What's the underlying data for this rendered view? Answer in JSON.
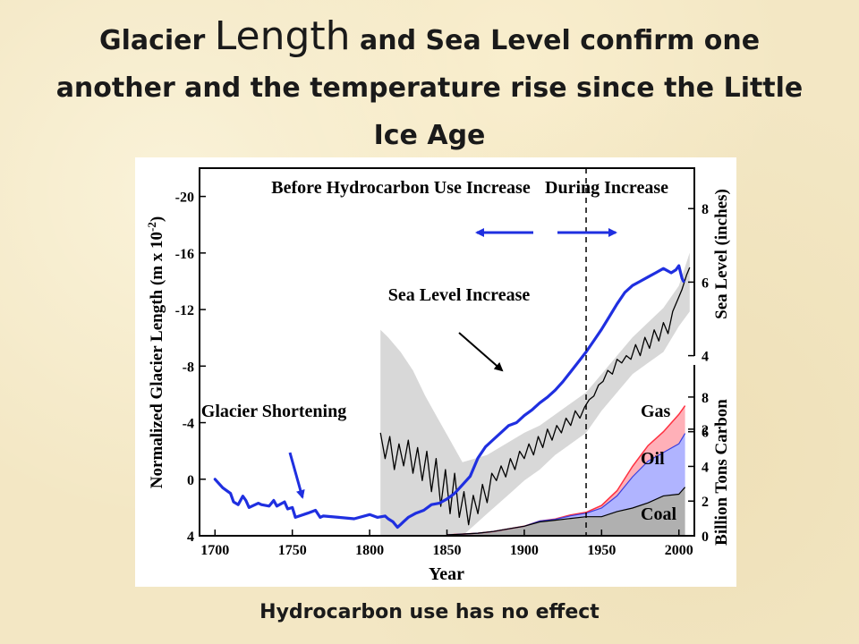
{
  "slide": {
    "title_part1": "Glacier",
    "title_part2": "Length",
    "title_part3": "and Sea Level confirm one another and the temperature rise since the Little Ice Age",
    "caption": "Hydrocarbon use has no effect"
  },
  "chart_data": {
    "type": "line",
    "xlabel": "Year",
    "xlim": [
      1690,
      2010
    ],
    "xticks": [
      1700,
      1750,
      1800,
      1850,
      1900,
      1950,
      2000
    ],
    "y_left": {
      "label": "Normalized Glacier Length (m x 10",
      "label_exp": "-2",
      "label_close": ")",
      "reversed": true,
      "range": [
        4,
        -22
      ],
      "ticks": [
        4,
        0,
        -4,
        -8,
        -12,
        -16,
        -20
      ],
      "tick_labels": [
        "4",
        "0",
        "-4",
        "-8",
        "-12",
        "-16",
        "-20"
      ]
    },
    "y_right_sea": {
      "label": "Sea Level (inches)",
      "range": [
        -0.9,
        9.1
      ],
      "ticks": [
        2,
        4,
        6,
        8
      ]
    },
    "y_right_carbon": {
      "label": "Billion Tons Carbon",
      "range": [
        0,
        9.8
      ],
      "ticks": [
        0,
        2,
        4,
        6,
        8
      ]
    },
    "colors": {
      "glacier": "#1f2fe0",
      "sea": "#000000",
      "coal": "#b0b0b0",
      "oil": "#b0b4ff",
      "gas": "#ffb0b8",
      "gas_line": "#ff3040",
      "band": "#d8d8d8"
    },
    "series": [
      {
        "name": "Glacier Length",
        "axis": "left",
        "x": [
          1700,
          1705,
          1710,
          1712,
          1715,
          1718,
          1720,
          1722,
          1728,
          1730,
          1735,
          1738,
          1740,
          1745,
          1747,
          1750,
          1752,
          1760,
          1765,
          1768,
          1770,
          1780,
          1790,
          1800,
          1805,
          1810,
          1812,
          1815,
          1818,
          1820,
          1822,
          1825,
          1830,
          1835,
          1840,
          1845,
          1850,
          1855,
          1860,
          1865,
          1870,
          1875,
          1880,
          1885,
          1890,
          1895,
          1900,
          1905,
          1910,
          1915,
          1920,
          1925,
          1930,
          1935,
          1940,
          1945,
          1950,
          1955,
          1960,
          1965,
          1970,
          1975,
          1980,
          1985,
          1990,
          1995,
          1998,
          2000,
          2002,
          2003
        ],
        "y": [
          0,
          0.6,
          1.0,
          1.6,
          1.8,
          1.2,
          1.5,
          2.0,
          1.7,
          1.8,
          1.9,
          1.5,
          1.9,
          1.6,
          2.1,
          2.0,
          2.7,
          2.4,
          2.2,
          2.7,
          2.6,
          2.7,
          2.8,
          2.5,
          2.7,
          2.6,
          2.8,
          3.0,
          3.4,
          3.2,
          3.0,
          2.7,
          2.4,
          2.2,
          1.8,
          1.7,
          1.4,
          1.0,
          0.4,
          -0.2,
          -1.5,
          -2.3,
          -2.8,
          -3.3,
          -3.8,
          -4.0,
          -4.5,
          -4.9,
          -5.4,
          -5.8,
          -6.3,
          -6.9,
          -7.6,
          -8.3,
          -9.0,
          -9.8,
          -10.6,
          -11.5,
          -12.4,
          -13.2,
          -13.7,
          -14.0,
          -14.3,
          -14.6,
          -14.9,
          -14.6,
          -14.8,
          -15.1,
          -14.2,
          -14.0
        ]
      },
      {
        "name": "Sea Level",
        "axis": "right_sea",
        "x": [
          1807,
          1810,
          1813,
          1816,
          1819,
          1822,
          1825,
          1828,
          1831,
          1834,
          1837,
          1840,
          1843,
          1846,
          1849,
          1852,
          1855,
          1858,
          1861,
          1864,
          1867,
          1870,
          1873,
          1876,
          1879,
          1882,
          1885,
          1888,
          1891,
          1894,
          1897,
          1900,
          1903,
          1906,
          1909,
          1912,
          1915,
          1918,
          1921,
          1924,
          1927,
          1930,
          1933,
          1936,
          1939,
          1942,
          1945,
          1948,
          1951,
          1954,
          1957,
          1960,
          1963,
          1966,
          1969,
          1972,
          1975,
          1978,
          1981,
          1984,
          1987,
          1990,
          1993,
          1996,
          1999,
          2002,
          2005,
          2007
        ],
        "y": [
          1.9,
          1.2,
          1.8,
          0.9,
          1.6,
          1.0,
          1.7,
          0.8,
          1.5,
          0.6,
          1.4,
          0.3,
          1.2,
          -0.1,
          0.9,
          -0.3,
          0.8,
          -0.4,
          0.3,
          -0.6,
          0.2,
          -0.3,
          0.5,
          0.0,
          0.8,
          0.6,
          1.0,
          0.7,
          1.2,
          0.9,
          1.4,
          1.2,
          1.6,
          1.3,
          1.8,
          1.5,
          2.0,
          1.7,
          2.1,
          1.9,
          2.3,
          2.1,
          2.5,
          2.3,
          2.6,
          2.8,
          2.9,
          3.2,
          3.3,
          3.6,
          3.5,
          3.9,
          3.8,
          4.0,
          3.9,
          4.3,
          4.0,
          4.5,
          4.2,
          4.7,
          4.4,
          4.9,
          4.6,
          5.2,
          5.5,
          5.8,
          6.2,
          6.4
        ]
      },
      {
        "name": "Coal",
        "axis": "right_carbon",
        "x": [
          1850,
          1860,
          1870,
          1880,
          1890,
          1900,
          1910,
          1920,
          1930,
          1940,
          1950,
          1960,
          1970,
          1980,
          1990,
          2000,
          2004
        ],
        "y": [
          0.05,
          0.1,
          0.15,
          0.25,
          0.4,
          0.55,
          0.8,
          0.9,
          1.0,
          1.1,
          1.1,
          1.4,
          1.6,
          1.9,
          2.3,
          2.4,
          2.8
        ]
      },
      {
        "name": "Oil",
        "axis": "right_carbon",
        "x": [
          1850,
          1860,
          1870,
          1880,
          1890,
          1900,
          1910,
          1920,
          1930,
          1940,
          1950,
          1960,
          1970,
          1980,
          1990,
          2000,
          2004
        ],
        "y": [
          0.05,
          0.1,
          0.15,
          0.25,
          0.4,
          0.55,
          0.85,
          0.95,
          1.15,
          1.3,
          1.6,
          2.3,
          3.4,
          4.3,
          4.8,
          5.3,
          5.9
        ]
      },
      {
        "name": "Gas",
        "axis": "right_carbon",
        "x": [
          1850,
          1860,
          1870,
          1880,
          1890,
          1900,
          1910,
          1920,
          1930,
          1940,
          1950,
          1960,
          1970,
          1980,
          1990,
          2000,
          2004
        ],
        "y": [
          0.05,
          0.1,
          0.15,
          0.25,
          0.4,
          0.55,
          0.85,
          0.97,
          1.2,
          1.35,
          1.75,
          2.6,
          4.0,
          5.2,
          6.0,
          7.0,
          7.5
        ]
      }
    ],
    "uncertainty_band": {
      "x": [
        1807,
        1812,
        1820,
        1828,
        1836,
        1844,
        1852,
        1860,
        1868,
        1876,
        1884,
        1892,
        1900,
        1910,
        1920,
        1930,
        1940,
        1950,
        1960,
        1970,
        1980,
        1990,
        2000,
        2007
      ],
      "upper": [
        4.7,
        4.5,
        4.1,
        3.6,
        2.9,
        2.3,
        1.7,
        1.1,
        1.2,
        1.3,
        1.5,
        1.7,
        1.9,
        2.1,
        2.4,
        2.7,
        3.0,
        3.5,
        4.0,
        4.5,
        4.9,
        5.3,
        5.9,
        6.8
      ],
      "lower": [
        -0.9,
        -0.9,
        -0.9,
        -0.9,
        -0.9,
        -0.9,
        -0.9,
        -0.9,
        -0.6,
        -0.3,
        0.0,
        0.3,
        0.6,
        0.9,
        1.3,
        1.6,
        1.9,
        2.5,
        3.0,
        3.5,
        3.8,
        4.1,
        4.8,
        5.2
      ]
    },
    "divider_year": 1940,
    "annotations": {
      "before": "Before Hydrocarbon Use Increase",
      "during": "During Increase",
      "sea_level": "Sea Level Increase",
      "glacier": "Glacier Shortening",
      "gas": "Gas",
      "oil": "Oil",
      "coal": "Coal"
    }
  }
}
